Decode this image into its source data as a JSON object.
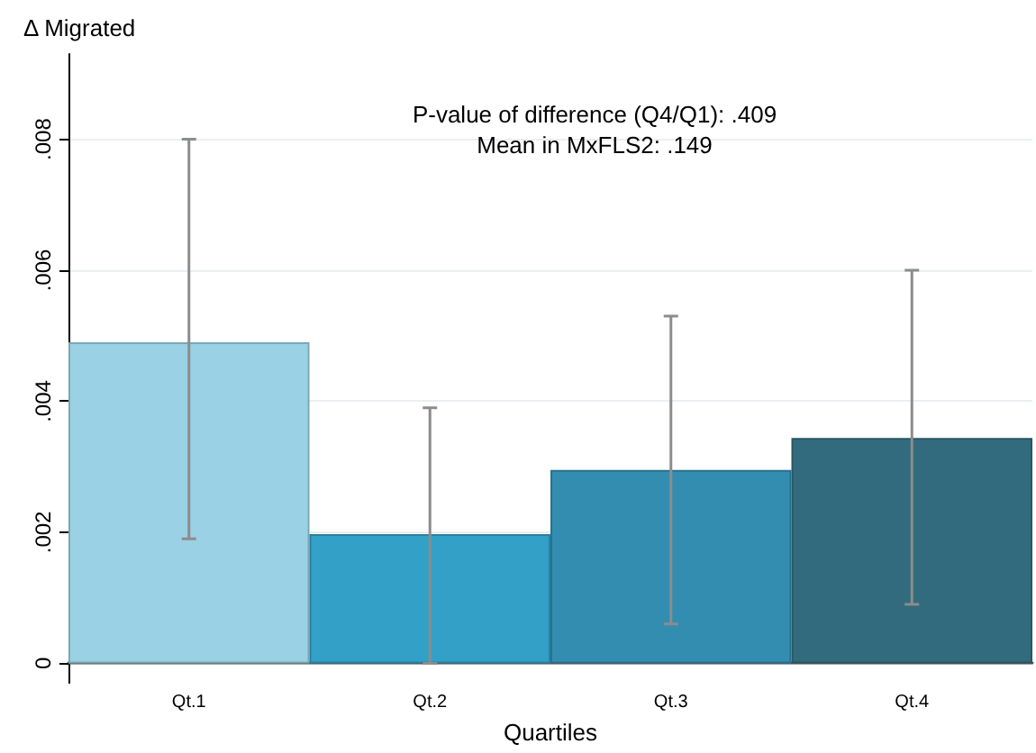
{
  "chart_data": {
    "type": "bar",
    "ylabel": "Δ Migrated",
    "xlabel": "Quartiles",
    "categories": [
      "Qt.1",
      "Qt.2",
      "Qt.3",
      "Qt.4"
    ],
    "values": [
      0.0049,
      0.00197,
      0.00295,
      0.00344
    ],
    "colors": [
      "#9ad1e4",
      "#33a0c8",
      "#338db0",
      "#336b7e"
    ],
    "errors": [
      [
        0.0019,
        0.008
      ],
      [
        0.0,
        0.0039
      ],
      [
        0.0006,
        0.0053
      ],
      [
        0.0009,
        0.006
      ]
    ],
    "ylim": [
      -0.0003,
      0.0093
    ],
    "yticks": [
      0,
      {
        "value": 0.002,
        "label": ".002"
      },
      {
        "value": 0.004,
        "label": ".004"
      },
      {
        "value": 0.006,
        "label": ".006"
      },
      {
        "value": 0.008,
        "label": ".008"
      }
    ],
    "grid": "y",
    "annotations": [
      "P-value of difference (Q4/Q1): .409",
      "Mean in MxFLS2: .149"
    ]
  }
}
